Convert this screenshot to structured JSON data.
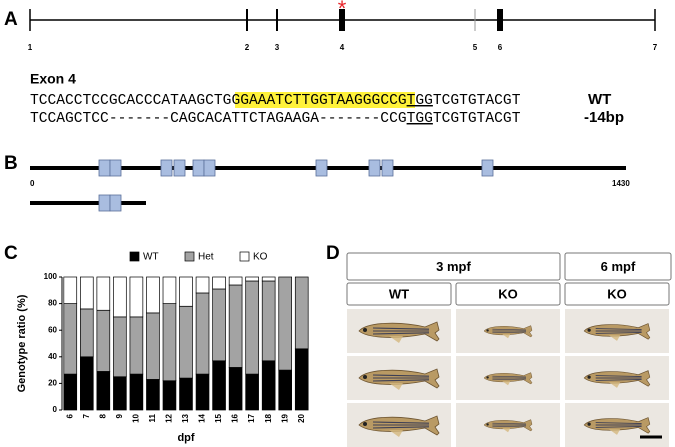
{
  "panel_labels": [
    "A",
    "B",
    "C",
    "D"
  ],
  "gene": {
    "exons": [
      "1",
      "2",
      "3",
      "4",
      "5",
      "6",
      "7"
    ],
    "marker": "*"
  },
  "sequence": {
    "title": "Exon 4",
    "wt": [
      "TCCACCTCCGCACCCATAAGCTG",
      "GGAAATCTTGGTAAGGGCCG",
      "TGG",
      "TCGTGTACGT"
    ],
    "wt_label": "WT",
    "mutant": [
      "TCCAGCTCC-------CAGCACATTCTAGAAGA-------CCG",
      "TGG",
      "TCGTGTACGT"
    ],
    "mutant_label": "-14bp"
  },
  "protein": {
    "start": "0",
    "end": "1430"
  },
  "chart_data": {
    "type": "bar",
    "stacked": true,
    "categories": [
      "6",
      "7",
      "8",
      "9",
      "10",
      "11",
      "12",
      "13",
      "14",
      "15",
      "16",
      "17",
      "18",
      "19",
      "20"
    ],
    "series": [
      {
        "name": "WT",
        "color": "#000000",
        "values": [
          27,
          40,
          29,
          25,
          27,
          23,
          22,
          24,
          27,
          37,
          32,
          27,
          37,
          30,
          46
        ]
      },
      {
        "name": "Het",
        "color": "#a3a3a3",
        "values": [
          53,
          36,
          46,
          45,
          43,
          50,
          58,
          54,
          61,
          54,
          62,
          70,
          60,
          70,
          54
        ]
      },
      {
        "name": "KO",
        "color": "#ffffff",
        "values": [
          20,
          24,
          25,
          30,
          30,
          27,
          20,
          22,
          12,
          9,
          6,
          3,
          3,
          0,
          0
        ]
      }
    ],
    "ylim": [
      0,
      100
    ],
    "yticks": [
      0,
      20,
      40,
      60,
      80,
      100
    ],
    "ylabel": "Genotype ratio (%)",
    "xlabel": "dpf"
  },
  "photos": {
    "groups": [
      "3 mpf",
      "6 mpf"
    ],
    "columns": [
      "WT",
      "KO",
      "KO"
    ]
  }
}
